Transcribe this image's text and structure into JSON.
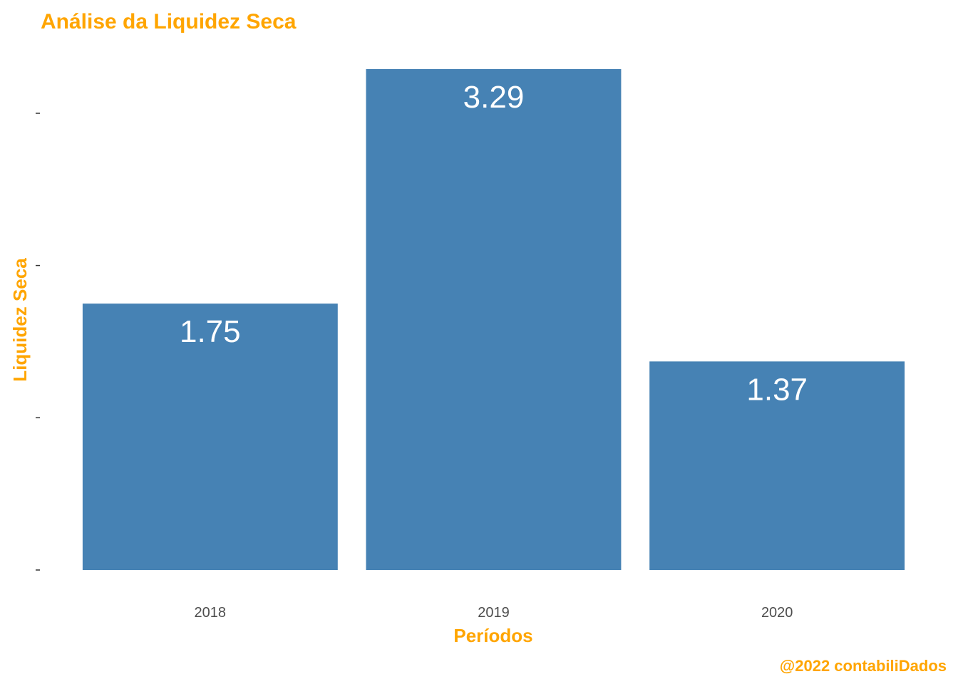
{
  "chart_data": {
    "type": "bar",
    "title": "Análise da Liquidez Seca",
    "xlabel": "Períodos",
    "ylabel": "Liquidez Seca",
    "categories": [
      "2018",
      "2019",
      "2020"
    ],
    "values": [
      1.75,
      3.29,
      1.37
    ],
    "value_labels": [
      "1.75",
      "3.29",
      "1.37"
    ],
    "ylim": [
      0,
      3.29
    ],
    "y_ticks": [
      0,
      1,
      2,
      3
    ],
    "y_tick_labels_shown": false,
    "grid": false,
    "legend": "none"
  },
  "caption": "@2022 contabiliDados",
  "colors": {
    "bar": "#4682b4",
    "accent": "#ffa500",
    "data_label": "#ffffff",
    "tick_label": "#4d4d4d",
    "tick_mark": "#333333"
  }
}
